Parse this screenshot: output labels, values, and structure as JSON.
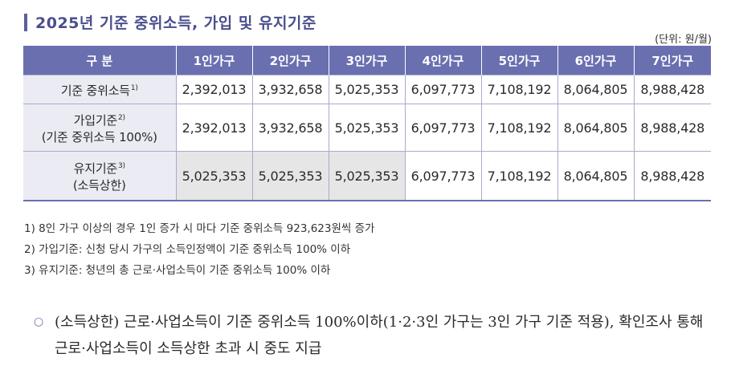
{
  "title": "2025년 기준 중위소득, 가입 및 유지기준",
  "unit": "(단위: 원/월)",
  "table": {
    "headers": [
      "구 분",
      "1인가구",
      "2인가구",
      "3인가구",
      "4인가구",
      "5인가구",
      "6인가구",
      "7인가구"
    ],
    "rows": [
      {
        "label_line1": "기준 중위소득",
        "label_line2": "",
        "note_mark": "1)",
        "values": [
          "2,392,013",
          "3,932,658",
          "5,025,353",
          "6,097,773",
          "7,108,192",
          "8,064,805",
          "8,988,428"
        ]
      },
      {
        "label_line1": "가입기준",
        "label_line2": "(기준 중위소득 100%)",
        "note_mark": "2)",
        "values": [
          "2,392,013",
          "3,932,658",
          "5,025,353",
          "6,097,773",
          "7,108,192",
          "8,064,805",
          "8,988,428"
        ]
      },
      {
        "label_line1": "유지기준",
        "label_line2": "(소득상한)",
        "note_mark": "3)",
        "values": [
          "5,025,353",
          "5,025,353",
          "5,025,353",
          "6,097,773",
          "7,108,192",
          "8,064,805",
          "8,988,428"
        ]
      }
    ]
  },
  "notes": [
    "1) 8인 가구 이상의 경우 1인 증가 시 마다 기준 중위소득 923,623원씩 증가",
    "2) 가입기준: 신청 당시 가구의 소득인정액이 기준 중위소득 100% 이하",
    "3) 유지기준: 청년의 총 근로·사업소득이 기준 중위소득 100% 이하"
  ],
  "bullet": {
    "mark": "○",
    "text": "(소득상한) 근로·사업소득이 기준 중위소득 100%이하(1·2·3인 가구는 3인 가구 기준 적용), 확인조사 통해 근로·사업소득이 소득상한 초과 시 중도 지급"
  },
  "colors": {
    "header_bg": "#6a6fb0",
    "rowhead_bg": "#ebebf4",
    "shaded_cell_bg": "#e6e6e6",
    "title_color": "#4a4f8c"
  }
}
